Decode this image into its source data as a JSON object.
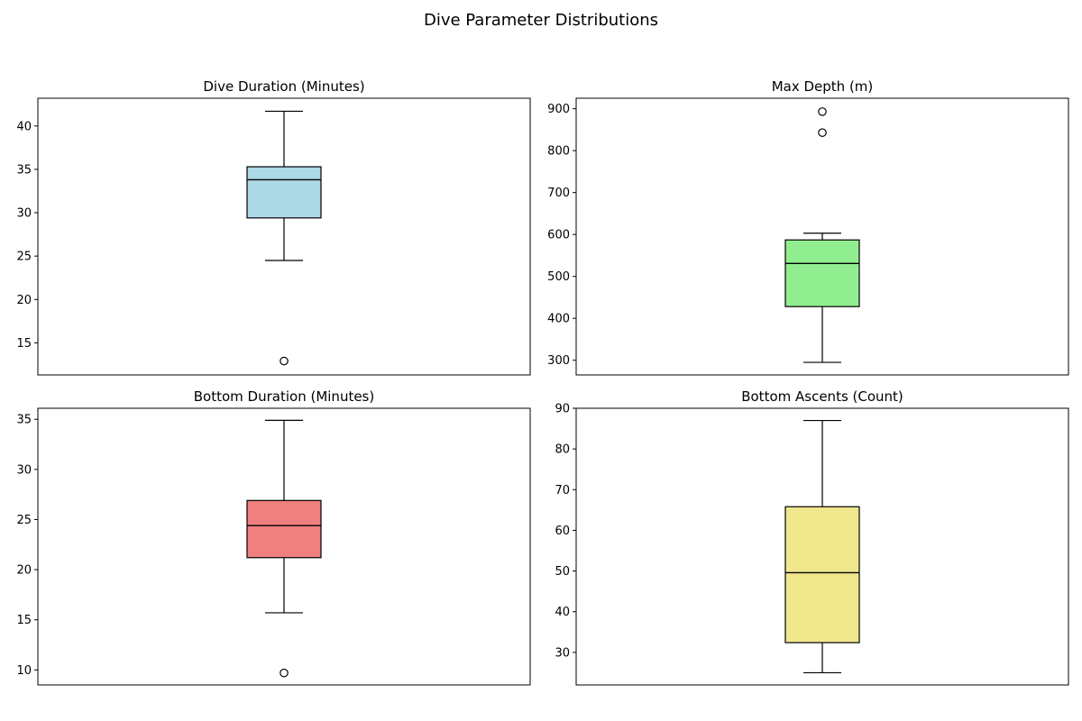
{
  "figure": {
    "title": "Dive Parameter Distributions"
  },
  "chart_data": [
    {
      "type": "box",
      "title": "Dive Duration (Minutes)",
      "xlabel": "",
      "ylabel": "",
      "ylim": [
        11.3,
        43.2
      ],
      "yticks": [
        15,
        20,
        25,
        30,
        35,
        40
      ],
      "grid": false,
      "box": {
        "whisker_low": 24.5,
        "q1": 29.4,
        "median": 33.8,
        "q3": 35.3,
        "whisker_high": 41.7,
        "fill": "#add8e6"
      },
      "outliers": [
        12.9
      ]
    },
    {
      "type": "box",
      "title": "Max Depth (m)",
      "xlabel": "",
      "ylabel": "",
      "ylim": [
        265,
        925
      ],
      "yticks": [
        300,
        400,
        500,
        600,
        700,
        800,
        900
      ],
      "grid": false,
      "box": {
        "whisker_low": 295,
        "q1": 428,
        "median": 531,
        "q3": 587,
        "whisker_high": 603,
        "fill": "#90ee90"
      },
      "outliers": [
        843,
        893
      ]
    },
    {
      "type": "box",
      "title": "Bottom Duration (Minutes)",
      "xlabel": "",
      "ylabel": "",
      "ylim": [
        8.5,
        36.1
      ],
      "yticks": [
        10,
        15,
        20,
        25,
        30,
        35
      ],
      "grid": false,
      "box": {
        "whisker_low": 15.7,
        "q1": 21.2,
        "median": 24.4,
        "q3": 26.9,
        "whisker_high": 34.9,
        "fill": "#f08080"
      },
      "outliers": [
        9.7
      ]
    },
    {
      "type": "box",
      "title": "Bottom Ascents (Count)",
      "xlabel": "",
      "ylabel": "",
      "ylim": [
        22,
        90
      ],
      "yticks": [
        30,
        40,
        50,
        60,
        70,
        80,
        90
      ],
      "grid": false,
      "box": {
        "whisker_low": 25,
        "q1": 32.4,
        "median": 49.6,
        "q3": 65.8,
        "whisker_high": 87,
        "fill": "#f0e68c"
      },
      "outliers": []
    }
  ]
}
